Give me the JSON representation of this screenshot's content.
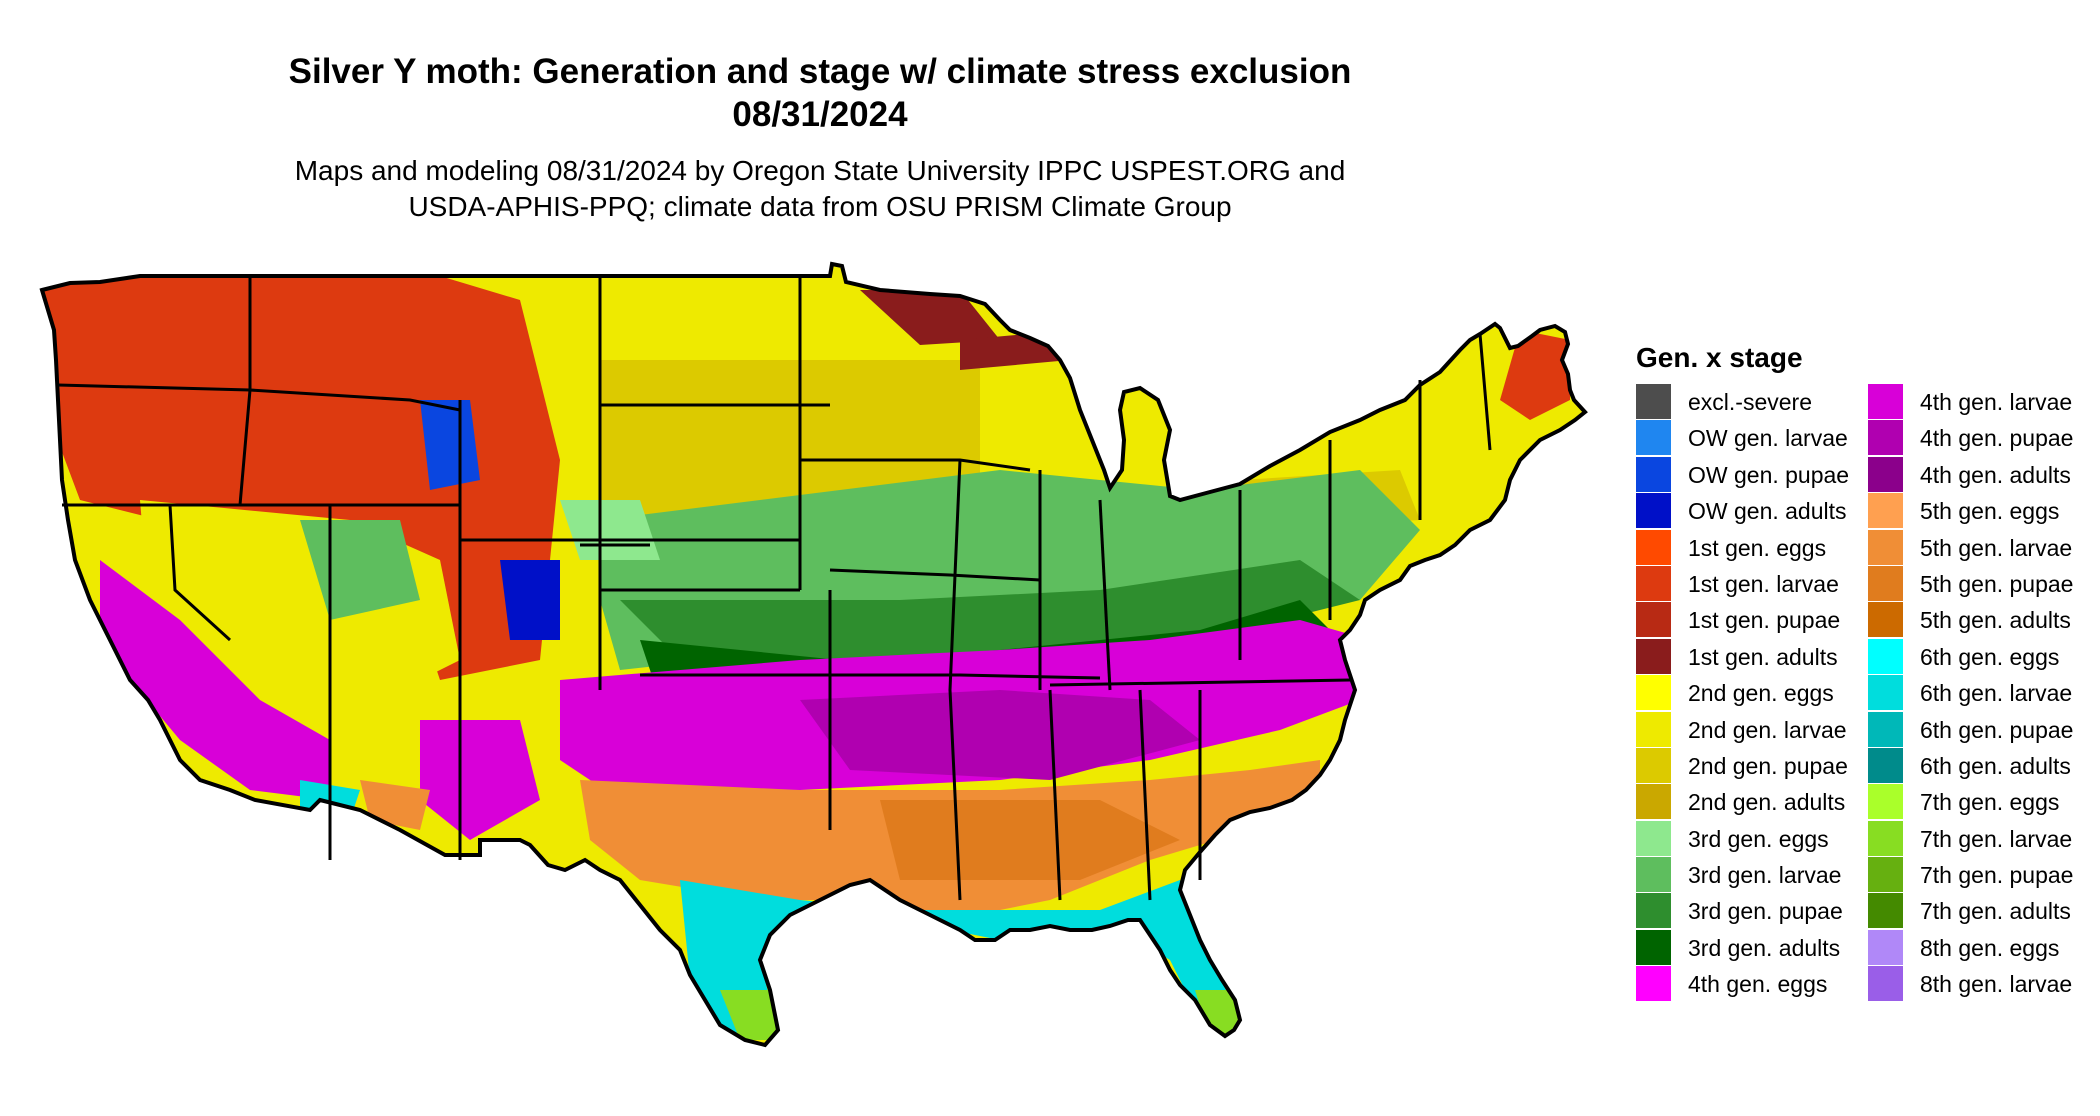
{
  "title_line1": "Silver Y moth: Generation and stage w/ climate stress exclusion",
  "title_line2": "08/31/2024",
  "subtitle_line1": "Maps and modeling 08/31/2024 by Oregon State University IPPC USPEST.ORG and",
  "subtitle_line2": "USDA-APHIS-PPQ; climate data from OSU PRISM Climate Group",
  "legend": {
    "title": "Gen. x stage",
    "items": [
      {
        "label": "excl.-severe",
        "color": "#4d4d4d"
      },
      {
        "label": "OW gen. larvae",
        "color": "#1f86f0"
      },
      {
        "label": "OW gen. pupae",
        "color": "#0a46e0"
      },
      {
        "label": "OW gen. adults",
        "color": "#0010c8"
      },
      {
        "label": "1st gen. eggs",
        "color": "#ff4a00"
      },
      {
        "label": "1st gen. larvae",
        "color": "#dd3a10"
      },
      {
        "label": "1st gen. pupae",
        "color": "#b82a14"
      },
      {
        "label": "1st gen. adults",
        "color": "#8a1c1c"
      },
      {
        "label": "2nd gen. eggs",
        "color": "#ffff00"
      },
      {
        "label": "2nd gen. larvae",
        "color": "#eeea00"
      },
      {
        "label": "2nd gen. pupae",
        "color": "#dcca00"
      },
      {
        "label": "2nd gen. adults",
        "color": "#caa800"
      },
      {
        "label": "3rd gen. eggs",
        "color": "#8ee88e"
      },
      {
        "label": "3rd gen. larvae",
        "color": "#5ebe5e"
      },
      {
        "label": "3rd gen. pupae",
        "color": "#2e8e2e"
      },
      {
        "label": "3rd gen. adults",
        "color": "#006400"
      },
      {
        "label": "4th gen. eggs",
        "color": "#ff00ff"
      },
      {
        "label": "4th gen. larvae",
        "color": "#d800d8"
      },
      {
        "label": "4th gen. pupae",
        "color": "#b000b0"
      },
      {
        "label": "4th gen. adults",
        "color": "#8b008b"
      },
      {
        "label": "5th gen. eggs",
        "color": "#ffa050"
      },
      {
        "label": "5th gen. larvae",
        "color": "#f08e36"
      },
      {
        "label": "5th gen. pupae",
        "color": "#e07c1e"
      },
      {
        "label": "5th gen. adults",
        "color": "#cc6a00"
      },
      {
        "label": "6th gen. eggs",
        "color": "#00ffff"
      },
      {
        "label": "6th gen. larvae",
        "color": "#00dddd"
      },
      {
        "label": "6th gen. pupae",
        "color": "#00b8b8"
      },
      {
        "label": "6th gen. adults",
        "color": "#008b8b"
      },
      {
        "label": "7th gen. eggs",
        "color": "#aaff2a"
      },
      {
        "label": "7th gen. larvae",
        "color": "#88dd22"
      },
      {
        "label": "7th gen. pupae",
        "color": "#66b010"
      },
      {
        "label": "7th gen. adults",
        "color": "#448a00"
      },
      {
        "label": "8th gen. eggs",
        "color": "#b088f8"
      },
      {
        "label": "8th gen. larvae",
        "color": "#9a5ee8"
      }
    ]
  },
  "map_colors": {
    "outline": "#000000"
  }
}
